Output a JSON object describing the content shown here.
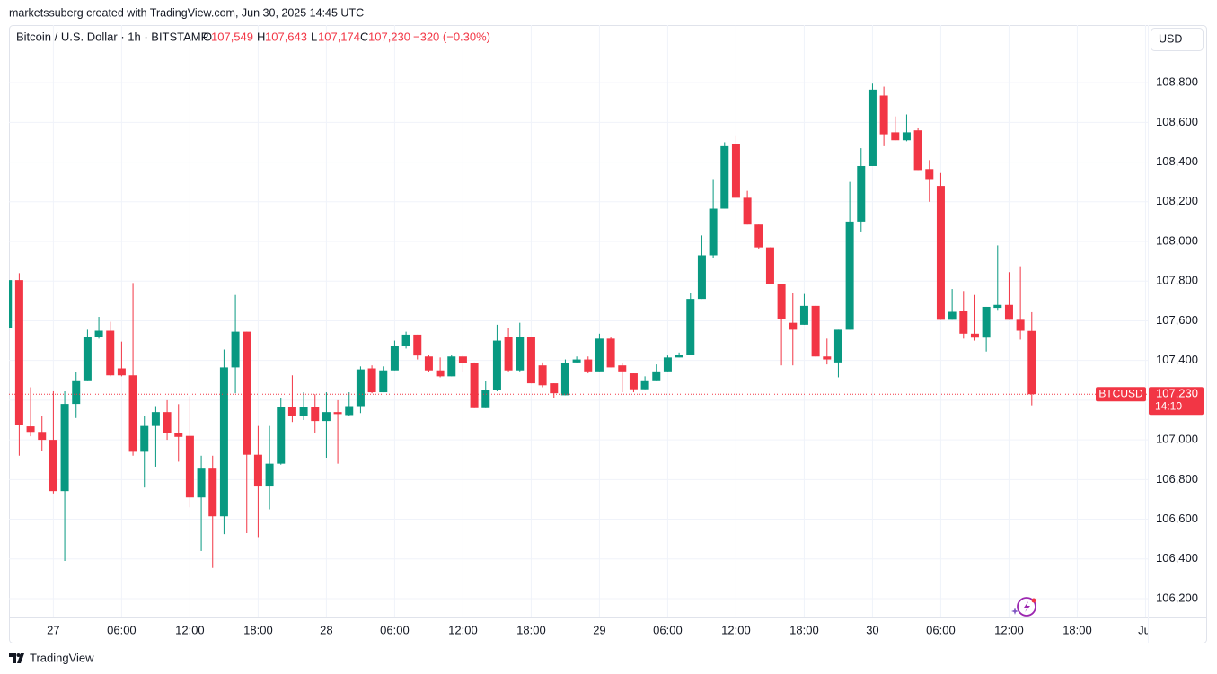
{
  "header": {
    "credit": "marketssuberg created with TradingView.com, Jun 30, 2025 14:45 UTC",
    "symbol": "Bitcoin / U.S. Dollar · 1h · BITSTAMP",
    "o_key": "O",
    "o_val": "107,549",
    "h_key": "H",
    "h_val": "107,643",
    "l_key": "L",
    "l_val": "107,174",
    "c_key": "C",
    "c_val": "107,230",
    "change": "−320 (−0.30%)",
    "currency": "USD"
  },
  "footer": {
    "brand": "TradingView"
  },
  "chart_data": {
    "type": "candlestick",
    "up_color": "#089981",
    "down_color": "#f23645",
    "grid": true,
    "x": [
      -4,
      -3,
      -2,
      -1,
      0,
      1,
      2,
      3,
      4,
      5,
      6,
      7,
      8,
      9,
      10,
      11,
      12,
      13,
      14,
      15,
      16,
      17,
      18,
      19,
      20,
      21,
      22,
      23,
      24,
      25,
      26,
      27,
      28,
      29,
      30,
      31,
      32,
      33,
      34,
      35,
      36,
      37,
      38,
      39,
      40,
      41,
      42,
      43,
      44,
      45,
      46,
      47,
      48,
      49,
      50,
      51,
      52,
      53,
      54,
      55,
      56,
      57,
      58,
      59,
      60,
      61,
      62,
      63,
      64,
      65,
      66,
      67,
      68,
      69,
      70,
      71,
      72,
      73,
      74,
      75,
      76,
      77,
      78,
      79,
      80,
      81,
      82,
      83,
      84,
      85,
      86
    ],
    "open": [
      107565,
      107805,
      107068,
      107040,
      107000,
      106742,
      107181,
      107300,
      107520,
      107550,
      107360,
      107325,
      106940,
      107070,
      107140,
      107035,
      107020,
      106710,
      106855,
      106615,
      107365,
      107545,
      106925,
      106765,
      106880,
      107165,
      107120,
      107165,
      107095,
      107140,
      107125,
      107170,
      107360,
      107240,
      107350,
      107475,
      107530,
      107420,
      107350,
      107320,
      107420,
      107385,
      107160,
      107250,
      107520,
      107350,
      107520,
      107375,
      107285,
      107225,
      107390,
      107405,
      107345,
      107510,
      107375,
      107335,
      107255,
      107300,
      107345,
      107415,
      107430,
      107710,
      107930,
      108165,
      108490,
      108220,
      108085,
      107970,
      107785,
      107590,
      107580,
      107675,
      107420,
      107390,
      107555,
      108100,
      108380,
      108735,
      108550,
      108510,
      108560,
      108365,
      108280,
      107605,
      107650,
      107535,
      107515,
      107665,
      107680,
      107605,
      107549
    ],
    "high": [
      107830,
      107840,
      107265,
      107122,
      107245,
      107245,
      107340,
      107555,
      107620,
      107595,
      107495,
      107790,
      107120,
      107170,
      107200,
      107180,
      107220,
      106920,
      106920,
      107455,
      107730,
      107545,
      107070,
      107070,
      107210,
      107325,
      107240,
      107230,
      107240,
      107200,
      107240,
      107370,
      107375,
      107370,
      107500,
      107545,
      107530,
      107430,
      107415,
      107430,
      107430,
      107390,
      107295,
      107580,
      107565,
      107590,
      107520,
      107390,
      107285,
      107405,
      107420,
      107420,
      107535,
      107520,
      107385,
      107335,
      107320,
      107380,
      107425,
      107440,
      107740,
      108030,
      108310,
      108500,
      108535,
      108255,
      108085,
      107970,
      107785,
      107740,
      107735,
      107675,
      107510,
      107555,
      108300,
      108470,
      108795,
      108780,
      108630,
      108640,
      108570,
      108410,
      108345,
      107760,
      107750,
      107730,
      107670,
      107980,
      107845,
      107875,
      107643
    ],
    "low": [
      107540,
      106920,
      107018,
      106946,
      106730,
      106390,
      107110,
      107300,
      107510,
      107320,
      107320,
      106920,
      106760,
      106865,
      107000,
      106890,
      106660,
      106440,
      106355,
      106525,
      107235,
      106530,
      106510,
      106650,
      106875,
      107090,
      107100,
      107035,
      106910,
      106880,
      107120,
      107135,
      107235,
      107240,
      107350,
      107460,
      107405,
      107340,
      107315,
      107320,
      107340,
      107160,
      107160,
      107245,
      107345,
      107345,
      107285,
      107265,
      107210,
      107225,
      107390,
      107335,
      107345,
      107365,
      107240,
      107240,
      107255,
      107300,
      107345,
      107415,
      107430,
      107710,
      107915,
      108165,
      108220,
      108085,
      107960,
      107785,
      107375,
      107375,
      107580,
      107420,
      107380,
      107315,
      107555,
      108050,
      108380,
      108480,
      108510,
      108505,
      108360,
      108200,
      107605,
      107605,
      107510,
      107500,
      107445,
      107655,
      107605,
      107505,
      107174
    ],
    "close": [
      107805,
      107073,
      107040,
      107000,
      106742,
      107181,
      107300,
      107520,
      107550,
      107325,
      107325,
      106940,
      107070,
      107140,
      107035,
      107015,
      106710,
      106855,
      106615,
      107365,
      107545,
      106925,
      106765,
      106880,
      107165,
      107120,
      107165,
      107095,
      107140,
      107130,
      107170,
      107355,
      107240,
      107350,
      107475,
      107530,
      107425,
      107350,
      107320,
      107420,
      107385,
      107160,
      107250,
      107500,
      107350,
      107520,
      107285,
      107275,
      107235,
      107385,
      107405,
      107345,
      107510,
      107365,
      107345,
      107255,
      107300,
      107345,
      107415,
      107430,
      107710,
      107930,
      108165,
      108480,
      108220,
      108085,
      107970,
      107785,
      107610,
      107555,
      107675,
      107420,
      107405,
      107555,
      108100,
      108380,
      108765,
      108540,
      108510,
      108550,
      108360,
      108310,
      107605,
      107645,
      107535,
      107515,
      107670,
      107680,
      107605,
      107550,
      107230
    ],
    "xlim": [
      -3.9,
      96.2
    ],
    "xticks": [
      {
        "value": 0,
        "label": "27"
      },
      {
        "value": 6,
        "label": "06:00"
      },
      {
        "value": 12,
        "label": "12:00"
      },
      {
        "value": 18,
        "label": "18:00"
      },
      {
        "value": 24,
        "label": "28"
      },
      {
        "value": 30,
        "label": "06:00"
      },
      {
        "value": 36,
        "label": "12:00"
      },
      {
        "value": 42,
        "label": "18:00"
      },
      {
        "value": 48,
        "label": "29"
      },
      {
        "value": 54,
        "label": "06:00"
      },
      {
        "value": 60,
        "label": "12:00"
      },
      {
        "value": 66,
        "label": "18:00"
      },
      {
        "value": 72,
        "label": "30"
      },
      {
        "value": 78,
        "label": "06:00"
      },
      {
        "value": 84,
        "label": "12:00"
      },
      {
        "value": 90,
        "label": "18:00"
      },
      {
        "value": 96,
        "label": "Jul"
      }
    ],
    "ylim": [
      106105,
      109090
    ],
    "yticks": [
      {
        "value": 106200,
        "label": "106,200"
      },
      {
        "value": 106400,
        "label": "106,400"
      },
      {
        "value": 106600,
        "label": "106,600"
      },
      {
        "value": 106800,
        "label": "106,800"
      },
      {
        "value": 107000,
        "label": "107,000"
      },
      {
        "value": 107200,
        "label": "107,200"
      },
      {
        "value": 107400,
        "label": "107,400"
      },
      {
        "value": 107600,
        "label": "107,600"
      },
      {
        "value": 107800,
        "label": "107,800"
      },
      {
        "value": 108000,
        "label": "108,000"
      },
      {
        "value": 108200,
        "label": "108,200"
      },
      {
        "value": 108400,
        "label": "108,400"
      },
      {
        "value": 108600,
        "label": "108,600"
      },
      {
        "value": 108800,
        "label": "108,800"
      }
    ],
    "last_price": {
      "symbol": "BTCUSD",
      "label": "107,230",
      "countdown": "14:10"
    }
  }
}
